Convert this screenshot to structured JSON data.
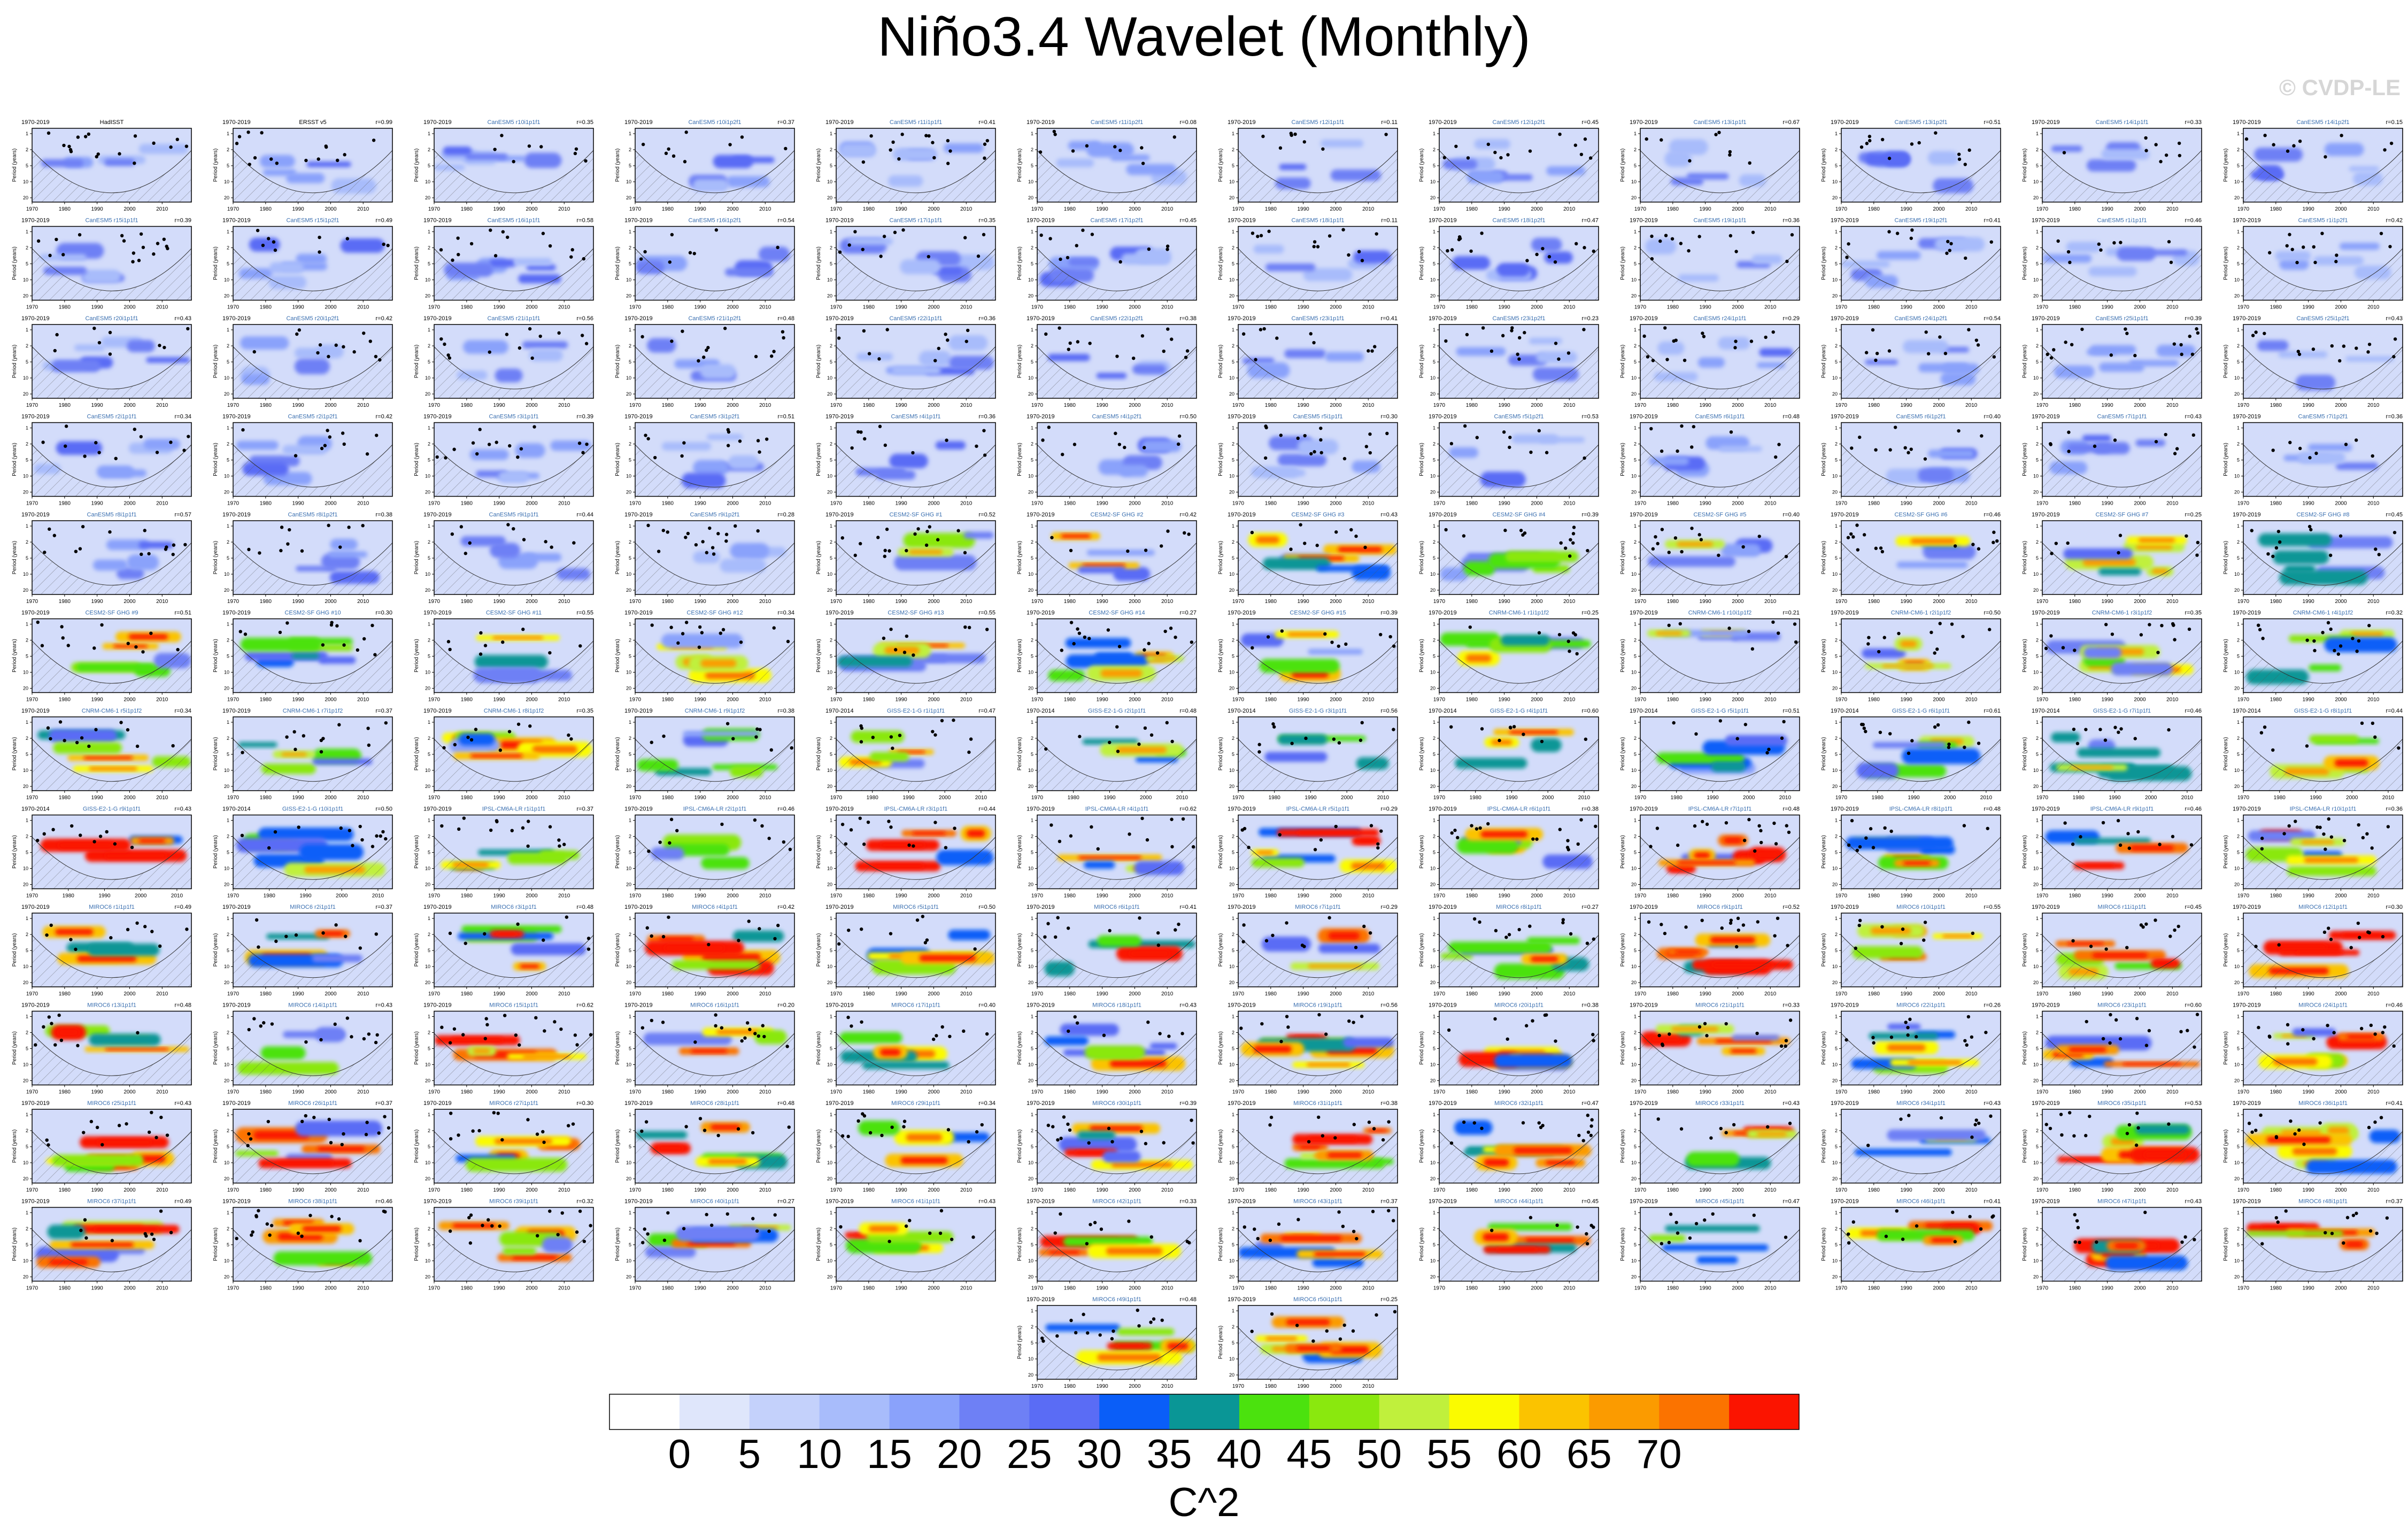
{
  "title": "Niño3.4 Wavelet (Monthly)",
  "watermark": "© CVDP-LE",
  "chart_data": {
    "type": "heatmap",
    "panel_layout": "12 columns x 12 rows plus 2 centered panels",
    "ylabel": "Period (years)",
    "y_ticks": [
      1,
      2,
      5,
      10,
      20
    ],
    "x_ticks": [
      1970,
      1980,
      1990,
      2000,
      2010
    ],
    "grid": false,
    "colorbar": {
      "label": "C^2",
      "tick_labels": [
        "0",
        "5",
        "10",
        "15",
        "20",
        "25",
        "30",
        "35",
        "40",
        "45",
        "50",
        "55",
        "60",
        "65",
        "70"
      ],
      "bins": [
        "#ffffff",
        "#dfe6fb",
        "#c4d1fb",
        "#a8bcfb",
        "#8aa2fb",
        "#6e80f5",
        "#5a6cf5",
        "#0a5ef8",
        "#0a9696",
        "#4be20e",
        "#8ae80e",
        "#c0f03c",
        "#fbfb00",
        "#fbc300",
        "#fb9b00",
        "#fb7300",
        "#fb1400"
      ]
    },
    "panels": [
      {
        "period": "1970-2019",
        "name": "HadISST",
        "r": ""
      },
      {
        "period": "1970-2019",
        "name": "ERSST v5",
        "r": "r=0.99"
      },
      {
        "period": "1970-2019",
        "name": "CanESM5 r10i1p1f1",
        "r": "r=0.35"
      },
      {
        "period": "1970-2019",
        "name": "CanESM5 r10i1p2f1",
        "r": "r=0.37"
      },
      {
        "period": "1970-2019",
        "name": "CanESM5 r11i1p1f1",
        "r": "r=0.41"
      },
      {
        "period": "1970-2019",
        "name": "CanESM5 r11i1p2f1",
        "r": "r=0.08"
      },
      {
        "period": "1970-2019",
        "name": "CanESM5 r12i1p1f1",
        "r": "r=0.11"
      },
      {
        "period": "1970-2019",
        "name": "CanESM5 r12i1p2f1",
        "r": "r=0.45"
      },
      {
        "period": "1970-2019",
        "name": "CanESM5 r13i1p1f1",
        "r": "r=0.67"
      },
      {
        "period": "1970-2019",
        "name": "CanESM5 r13i1p2f1",
        "r": "r=0.51"
      },
      {
        "period": "1970-2019",
        "name": "CanESM5 r14i1p1f1",
        "r": "r=0.33"
      },
      {
        "period": "1970-2019",
        "name": "CanESM5 r14i1p2f1",
        "r": "r=0.15"
      },
      {
        "period": "1970-2019",
        "name": "CanESM5 r15i1p1f1",
        "r": "r=0.39"
      },
      {
        "period": "1970-2019",
        "name": "CanESM5 r15i1p2f1",
        "r": "r=0.49"
      },
      {
        "period": "1970-2019",
        "name": "CanESM5 r16i1p1f1",
        "r": "r=0.58"
      },
      {
        "period": "1970-2019",
        "name": "CanESM5 r16i1p2f1",
        "r": "r=0.54"
      },
      {
        "period": "1970-2019",
        "name": "CanESM5 r17i1p1f1",
        "r": "r=0.35"
      },
      {
        "period": "1970-2019",
        "name": "CanESM5 r17i1p2f1",
        "r": "r=0.45"
      },
      {
        "period": "1970-2019",
        "name": "CanESM5 r18i1p1f1",
        "r": "r=0.11"
      },
      {
        "period": "1970-2019",
        "name": "CanESM5 r18i1p2f1",
        "r": "r=0.47"
      },
      {
        "period": "1970-2019",
        "name": "CanESM5 r19i1p1f1",
        "r": "r=0.36"
      },
      {
        "period": "1970-2019",
        "name": "CanESM5 r19i1p2f1",
        "r": "r=0.41"
      },
      {
        "period": "1970-2019",
        "name": "CanESM5 r1i1p1f1",
        "r": "r=0.46"
      },
      {
        "period": "1970-2019",
        "name": "CanESM5 r1i1p2f1",
        "r": "r=0.42"
      },
      {
        "period": "1970-2019",
        "name": "CanESM5 r20i1p1f1",
        "r": "r=0.43"
      },
      {
        "period": "1970-2019",
        "name": "CanESM5 r20i1p2f1",
        "r": "r=0.42"
      },
      {
        "period": "1970-2019",
        "name": "CanESM5 r21i1p1f1",
        "r": "r=0.56"
      },
      {
        "period": "1970-2019",
        "name": "CanESM5 r21i1p2f1",
        "r": "r=0.48"
      },
      {
        "period": "1970-2019",
        "name": "CanESM5 r22i1p1f1",
        "r": "r=0.36"
      },
      {
        "period": "1970-2019",
        "name": "CanESM5 r22i1p2f1",
        "r": "r=0.38"
      },
      {
        "period": "1970-2019",
        "name": "CanESM5 r23i1p1f1",
        "r": "r=0.41"
      },
      {
        "period": "1970-2019",
        "name": "CanESM5 r23i1p2f1",
        "r": "r=0.23"
      },
      {
        "period": "1970-2019",
        "name": "CanESM5 r24i1p1f1",
        "r": "r=0.29"
      },
      {
        "period": "1970-2019",
        "name": "CanESM5 r24i1p2f1",
        "r": "r=0.54"
      },
      {
        "period": "1970-2019",
        "name": "CanESM5 r25i1p1f1",
        "r": "r=0.39"
      },
      {
        "period": "1970-2019",
        "name": "CanESM5 r25i1p2f1",
        "r": "r=0.43"
      },
      {
        "period": "1970-2019",
        "name": "CanESM5 r2i1p1f1",
        "r": "r=0.34"
      },
      {
        "period": "1970-2019",
        "name": "CanESM5 r2i1p2f1",
        "r": "r=0.42"
      },
      {
        "period": "1970-2019",
        "name": "CanESM5 r3i1p1f1",
        "r": "r=0.39"
      },
      {
        "period": "1970-2019",
        "name": "CanESM5 r3i1p2f1",
        "r": "r=0.51"
      },
      {
        "period": "1970-2019",
        "name": "CanESM5 r4i1p1f1",
        "r": "r=0.36"
      },
      {
        "period": "1970-2019",
        "name": "CanESM5 r4i1p2f1",
        "r": "r=0.50"
      },
      {
        "period": "1970-2019",
        "name": "CanESM5 r5i1p1f1",
        "r": "r=0.30"
      },
      {
        "period": "1970-2019",
        "name": "CanESM5 r5i1p2f1",
        "r": "r=0.53"
      },
      {
        "period": "1970-2019",
        "name": "CanESM5 r6i1p1f1",
        "r": "r=0.48"
      },
      {
        "period": "1970-2019",
        "name": "CanESM5 r6i1p2f1",
        "r": "r=0.40"
      },
      {
        "period": "1970-2019",
        "name": "CanESM5 r7i1p1f1",
        "r": "r=0.43"
      },
      {
        "period": "1970-2019",
        "name": "CanESM5 r7i1p2f1",
        "r": "r=0.36"
      },
      {
        "period": "1970-2019",
        "name": "CanESM5 r8i1p1f1",
        "r": "r=0.57"
      },
      {
        "period": "1970-2019",
        "name": "CanESM5 r8i1p2f1",
        "r": "r=0.38"
      },
      {
        "period": "1970-2019",
        "name": "CanESM5 r9i1p1f1",
        "r": "r=0.44"
      },
      {
        "period": "1970-2019",
        "name": "CanESM5 r9i1p2f1",
        "r": "r=0.28"
      },
      {
        "period": "1970-2019",
        "name": "CESM2-SF GHG #1",
        "r": "r=0.52"
      },
      {
        "period": "1970-2019",
        "name": "CESM2-SF GHG #2",
        "r": "r=0.42"
      },
      {
        "period": "1970-2019",
        "name": "CESM2-SF GHG #3",
        "r": "r=0.43"
      },
      {
        "period": "1970-2019",
        "name": "CESM2-SF GHG #4",
        "r": "r=0.39"
      },
      {
        "period": "1970-2019",
        "name": "CESM2-SF GHG #5",
        "r": "r=0.40"
      },
      {
        "period": "1970-2019",
        "name": "CESM2-SF GHG #6",
        "r": "r=0.46"
      },
      {
        "period": "1970-2019",
        "name": "CESM2-SF GHG #7",
        "r": "r=0.25"
      },
      {
        "period": "1970-2019",
        "name": "CESM2-SF GHG #8",
        "r": "r=0.45"
      },
      {
        "period": "1970-2019",
        "name": "CESM2-SF GHG #9",
        "r": "r=0.51"
      },
      {
        "period": "1970-2019",
        "name": "CESM2-SF GHG #10",
        "r": "r=0.30"
      },
      {
        "period": "1970-2019",
        "name": "CESM2-SF GHG #11",
        "r": "r=0.55"
      },
      {
        "period": "1970-2019",
        "name": "CESM2-SF GHG #12",
        "r": "r=0.34"
      },
      {
        "period": "1970-2019",
        "name": "CESM2-SF GHG #13",
        "r": "r=0.55"
      },
      {
        "period": "1970-2019",
        "name": "CESM2-SF GHG #14",
        "r": "r=0.27"
      },
      {
        "period": "1970-2019",
        "name": "CESM2-SF GHG #15",
        "r": "r=0.39"
      },
      {
        "period": "1970-2019",
        "name": "CNRM-CM6-1 r1i1p1f2",
        "r": "r=0.25"
      },
      {
        "period": "1970-2019",
        "name": "CNRM-CM6-1 r10i1p1f2",
        "r": "r=0.21"
      },
      {
        "period": "1970-2019",
        "name": "CNRM-CM6-1 r2i1p1f2",
        "r": "r=0.50"
      },
      {
        "period": "1970-2019",
        "name": "CNRM-CM6-1 r3i1p1f2",
        "r": "r=0.35"
      },
      {
        "period": "1970-2019",
        "name": "CNRM-CM6-1 r4i1p1f2",
        "r": "r=0.32"
      },
      {
        "period": "1970-2019",
        "name": "CNRM-CM6-1 r5i1p1f2",
        "r": "r=0.34"
      },
      {
        "period": "1970-2019",
        "name": "CNRM-CM6-1 r7i1p1f2",
        "r": "r=0.37"
      },
      {
        "period": "1970-2019",
        "name": "CNRM-CM6-1 r8i1p1f2",
        "r": "r=0.35"
      },
      {
        "period": "1970-2019",
        "name": "CNRM-CM6-1 r9i1p1f2",
        "r": "r=0.38"
      },
      {
        "period": "1970-2014",
        "name": "GISS-E2-1-G r1i1p1f1",
        "r": "r=0.47"
      },
      {
        "period": "1970-2014",
        "name": "GISS-E2-1-G r2i1p1f1",
        "r": "r=0.48"
      },
      {
        "period": "1970-2014",
        "name": "GISS-E2-1-G r3i1p1f1",
        "r": "r=0.56"
      },
      {
        "period": "1970-2014",
        "name": "GISS-E2-1-G r4i1p1f1",
        "r": "r=0.60"
      },
      {
        "period": "1970-2014",
        "name": "GISS-E2-1-G r5i1p1f1",
        "r": "r=0.51"
      },
      {
        "period": "1970-2014",
        "name": "GISS-E2-1-G r6i1p1f1",
        "r": "r=0.61"
      },
      {
        "period": "1970-2014",
        "name": "GISS-E2-1-G r7i1p1f1",
        "r": "r=0.46"
      },
      {
        "period": "1970-2014",
        "name": "GISS-E2-1-G r8i1p1f1",
        "r": "r=0.44"
      },
      {
        "period": "1970-2014",
        "name": "GISS-E2-1-G r9i1p1f1",
        "r": "r=0.43"
      },
      {
        "period": "1970-2014",
        "name": "GISS-E2-1-G r10i1p1f1",
        "r": "r=0.50"
      },
      {
        "period": "1970-2019",
        "name": "IPSL-CM6A-LR r1i1p1f1",
        "r": "r=0.37"
      },
      {
        "period": "1970-2019",
        "name": "IPSL-CM6A-LR r2i1p1f1",
        "r": "r=0.46"
      },
      {
        "period": "1970-2019",
        "name": "IPSL-CM6A-LR r3i1p1f1",
        "r": "r=0.44"
      },
      {
        "period": "1970-2019",
        "name": "IPSL-CM6A-LR r4i1p1f1",
        "r": "r=0.62"
      },
      {
        "period": "1970-2019",
        "name": "IPSL-CM6A-LR r5i1p1f1",
        "r": "r=0.29"
      },
      {
        "period": "1970-2019",
        "name": "IPSL-CM6A-LR r6i1p1f1",
        "r": "r=0.38"
      },
      {
        "period": "1970-2019",
        "name": "IPSL-CM6A-LR r7i1p1f1",
        "r": "r=0.48"
      },
      {
        "period": "1970-2019",
        "name": "IPSL-CM6A-LR r8i1p1f1",
        "r": "r=0.48"
      },
      {
        "period": "1970-2019",
        "name": "IPSL-CM6A-LR r9i1p1f1",
        "r": "r=0.46"
      },
      {
        "period": "1970-2019",
        "name": "IPSL-CM6A-LR r10i1p1f1",
        "r": "r=0.36"
      },
      {
        "period": "1970-2019",
        "name": "MIROC6 r1i1p1f1",
        "r": "r=0.49"
      },
      {
        "period": "1970-2019",
        "name": "MIROC6 r2i1p1f1",
        "r": "r=0.37"
      },
      {
        "period": "1970-2019",
        "name": "MIROC6 r3i1p1f1",
        "r": "r=0.48"
      },
      {
        "period": "1970-2019",
        "name": "MIROC6 r4i1p1f1",
        "r": "r=0.42"
      },
      {
        "period": "1970-2019",
        "name": "MIROC6 r5i1p1f1",
        "r": "r=0.50"
      },
      {
        "period": "1970-2019",
        "name": "MIROC6 r6i1p1f1",
        "r": "r=0.41"
      },
      {
        "period": "1970-2019",
        "name": "MIROC6 r7i1p1f1",
        "r": "r=0.29"
      },
      {
        "period": "1970-2019",
        "name": "MIROC6 r8i1p1f1",
        "r": "r=0.27"
      },
      {
        "period": "1970-2019",
        "name": "MIROC6 r9i1p1f1",
        "r": "r=0.52"
      },
      {
        "period": "1970-2019",
        "name": "MIROC6 r10i1p1f1",
        "r": "r=0.55"
      },
      {
        "period": "1970-2019",
        "name": "MIROC6 r11i1p1f1",
        "r": "r=0.45"
      },
      {
        "period": "1970-2019",
        "name": "MIROC6 r12i1p1f1",
        "r": "r=0.30"
      },
      {
        "period": "1970-2019",
        "name": "MIROC6 r13i1p1f1",
        "r": "r=0.48"
      },
      {
        "period": "1970-2019",
        "name": "MIROC6 r14i1p1f1",
        "r": "r=0.43"
      },
      {
        "period": "1970-2019",
        "name": "MIROC6 r15i1p1f1",
        "r": "r=0.62"
      },
      {
        "period": "1970-2019",
        "name": "MIROC6 r16i1p1f1",
        "r": "r=0.20"
      },
      {
        "period": "1970-2019",
        "name": "MIROC6 r17i1p1f1",
        "r": "r=0.40"
      },
      {
        "period": "1970-2019",
        "name": "MIROC6 r18i1p1f1",
        "r": "r=0.43"
      },
      {
        "period": "1970-2019",
        "name": "MIROC6 r19i1p1f1",
        "r": "r=0.56"
      },
      {
        "period": "1970-2019",
        "name": "MIROC6 r20i1p1f1",
        "r": "r=0.38"
      },
      {
        "period": "1970-2019",
        "name": "MIROC6 r21i1p1f1",
        "r": "r=0.33"
      },
      {
        "period": "1970-2019",
        "name": "MIROC6 r22i1p1f1",
        "r": "r=0.26"
      },
      {
        "period": "1970-2019",
        "name": "MIROC6 r23i1p1f1",
        "r": "r=0.60"
      },
      {
        "period": "1970-2019",
        "name": "MIROC6 r24i1p1f1",
        "r": "r=0.46"
      },
      {
        "period": "1970-2019",
        "name": "MIROC6 r25i1p1f1",
        "r": "r=0.43"
      },
      {
        "period": "1970-2019",
        "name": "MIROC6 r26i1p1f1",
        "r": "r=0.37"
      },
      {
        "period": "1970-2019",
        "name": "MIROC6 r27i1p1f1",
        "r": "r=0.30"
      },
      {
        "period": "1970-2019",
        "name": "MIROC6 r28i1p1f1",
        "r": "r=0.48"
      },
      {
        "period": "1970-2019",
        "name": "MIROC6 r29i1p1f1",
        "r": "r=0.34"
      },
      {
        "period": "1970-2019",
        "name": "MIROC6 r30i1p1f1",
        "r": "r=0.39"
      },
      {
        "period": "1970-2019",
        "name": "MIROC6 r31i1p1f1",
        "r": "r=0.38"
      },
      {
        "period": "1970-2019",
        "name": "MIROC6 r32i1p1f1",
        "r": "r=0.47"
      },
      {
        "period": "1970-2019",
        "name": "MIROC6 r33i1p1f1",
        "r": "r=0.43"
      },
      {
        "period": "1970-2019",
        "name": "MIROC6 r34i1p1f1",
        "r": "r=0.43"
      },
      {
        "period": "1970-2019",
        "name": "MIROC6 r35i1p1f1",
        "r": "r=0.53"
      },
      {
        "period": "1970-2019",
        "name": "MIROC6 r36i1p1f1",
        "r": "r=0.41"
      },
      {
        "period": "1970-2019",
        "name": "MIROC6 r37i1p1f1",
        "r": "r=0.49"
      },
      {
        "period": "1970-2019",
        "name": "MIROC6 r38i1p1f1",
        "r": "r=0.46"
      },
      {
        "period": "1970-2019",
        "name": "MIROC6 r39i1p1f1",
        "r": "r=0.32"
      },
      {
        "period": "1970-2019",
        "name": "MIROC6 r40i1p1f1",
        "r": "r=0.27"
      },
      {
        "period": "1970-2019",
        "name": "MIROC6 r41i1p1f1",
        "r": "r=0.43"
      },
      {
        "period": "1970-2019",
        "name": "MIROC6 r42i1p1f1",
        "r": "r=0.33"
      },
      {
        "period": "1970-2019",
        "name": "MIROC6 r43i1p1f1",
        "r": "r=0.37"
      },
      {
        "period": "1970-2019",
        "name": "MIROC6 r44i1p1f1",
        "r": "r=0.45"
      },
      {
        "period": "1970-2019",
        "name": "MIROC6 r45i1p1f1",
        "r": "r=0.47"
      },
      {
        "period": "1970-2019",
        "name": "MIROC6 r46i1p1f1",
        "r": "r=0.41"
      },
      {
        "period": "1970-2019",
        "name": "MIROC6 r47i1p1f1",
        "r": "r=0.43"
      },
      {
        "period": "1970-2019",
        "name": "MIROC6 r48i1p1f1",
        "r": "r=0.37"
      },
      {
        "period": "1970-2019",
        "name": "MIROC6 r49i1p1f1",
        "r": "r=0.48"
      },
      {
        "period": "1970-2019",
        "name": "MIROC6 r50i1p1f1",
        "r": "r=0.25"
      }
    ]
  }
}
